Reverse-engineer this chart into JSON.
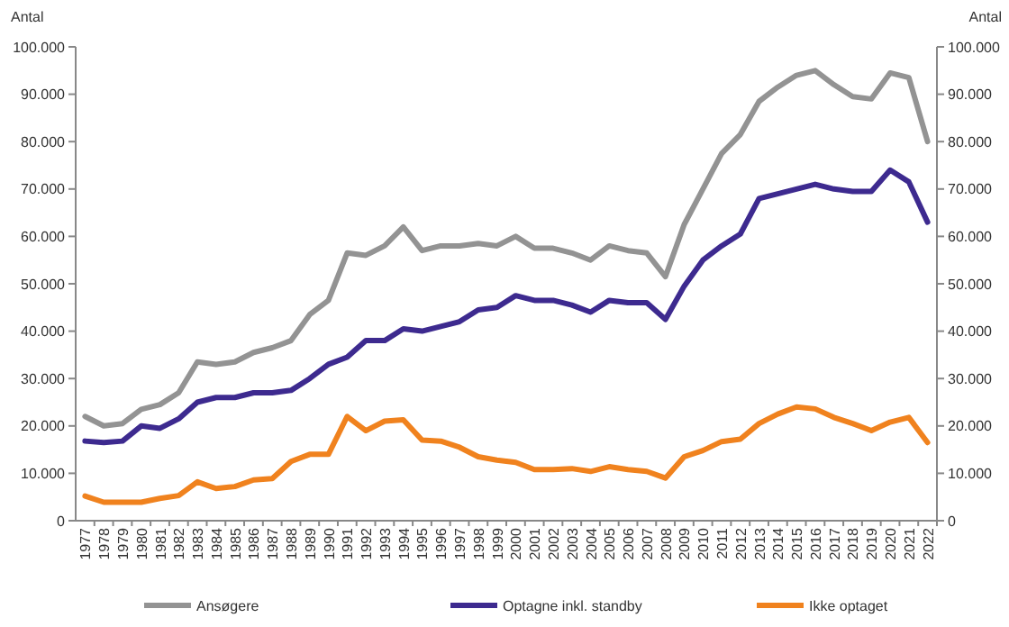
{
  "chart_data": {
    "type": "line",
    "ylabel": "Antal",
    "y2label": "Antal",
    "categories": [
      "1977",
      "1978",
      "1979",
      "1980",
      "1981",
      "1982",
      "1983",
      "1984",
      "1985",
      "1986",
      "1987",
      "1988",
      "1989",
      "1990",
      "1991",
      "1992",
      "1993",
      "1994",
      "1995",
      "1996",
      "1997",
      "1998",
      "1999",
      "2000",
      "2001",
      "2002",
      "2003",
      "2004",
      "2005",
      "2006",
      "2007",
      "2008",
      "2009",
      "2010",
      "2011",
      "2012",
      "2013",
      "2014",
      "2015",
      "2016",
      "2017",
      "2018",
      "2019",
      "2020",
      "2021",
      "2022"
    ],
    "series": [
      {
        "name": "Ansøgere",
        "color": "#939393",
        "values": [
          22000,
          20000,
          20500,
          23500,
          24500,
          27000,
          33500,
          33000,
          33500,
          35500,
          36500,
          38000,
          43500,
          46500,
          56500,
          56000,
          58000,
          62000,
          57000,
          58000,
          58000,
          58500,
          58000,
          60000,
          57500,
          57500,
          56500,
          55000,
          58000,
          57000,
          56500,
          51500,
          62500,
          70000,
          77500,
          81500,
          88500,
          91500,
          94000,
          95000,
          92000,
          89500,
          89000,
          94500,
          93500,
          80000
        ]
      },
      {
        "name": "Optagne inkl. standby",
        "color": "#3d2a8f",
        "values": [
          16800,
          16500,
          16800,
          20000,
          19500,
          21500,
          25000,
          26000,
          26000,
          27000,
          27000,
          27500,
          30000,
          33000,
          34500,
          38000,
          38000,
          40500,
          40000,
          41000,
          42000,
          44500,
          45000,
          47500,
          46500,
          46500,
          45500,
          44000,
          46500,
          46000,
          46000,
          42500,
          49500,
          55000,
          58000,
          60500,
          68000,
          69000,
          70000,
          71000,
          70000,
          69500,
          69500,
          74000,
          71500,
          63000
        ]
      },
      {
        "name": "Ikke optaget",
        "color": "#f0821e",
        "values": [
          5200,
          3900,
          3900,
          3900,
          4700,
          5300,
          8200,
          6800,
          7200,
          8600,
          8900,
          12500,
          14000,
          14000,
          22000,
          19000,
          21000,
          21300,
          17000,
          16800,
          15500,
          13500,
          12800,
          12300,
          10800,
          10800,
          11000,
          10400,
          11400,
          10800,
          10400,
          9000,
          13500,
          14800,
          16700,
          17200,
          20500,
          22500,
          24000,
          23600,
          21800,
          20500,
          19000,
          20800,
          21800,
          16500
        ]
      }
    ],
    "ylim": [
      0,
      100000
    ],
    "yticks": [
      0,
      {
        "value": 10000,
        "label": "10.000"
      },
      {
        "value": 20000,
        "label": "20.000"
      },
      {
        "value": 30000,
        "label": "30.000"
      },
      {
        "value": 40000,
        "label": "40.000"
      },
      {
        "value": 50000,
        "label": "50.000"
      },
      {
        "value": 60000,
        "label": "60.000"
      },
      {
        "value": 70000,
        "label": "70.000"
      },
      {
        "value": 80000,
        "label": "80.000"
      },
      {
        "value": 90000,
        "label": "90.000"
      },
      {
        "value": 100000,
        "label": "100.000"
      }
    ],
    "y2lim": [
      0,
      100000
    ],
    "y2ticks": [
      0,
      {
        "value": 10000,
        "label": "10.000"
      },
      {
        "value": 20000,
        "label": "20.000"
      },
      {
        "value": 30000,
        "label": "30.000"
      },
      {
        "value": 40000,
        "label": "40.000"
      },
      {
        "value": 50000,
        "label": "50.000"
      },
      {
        "value": 60000,
        "label": "60.000"
      },
      {
        "value": 70000,
        "label": "70.000"
      },
      {
        "value": 80000,
        "label": "80.000"
      },
      {
        "value": 90000,
        "label": "90.000"
      },
      {
        "value": 100000,
        "label": "100.000"
      }
    ],
    "legend": "bottom",
    "grid": false,
    "marker": "none",
    "line_style": "solid"
  }
}
